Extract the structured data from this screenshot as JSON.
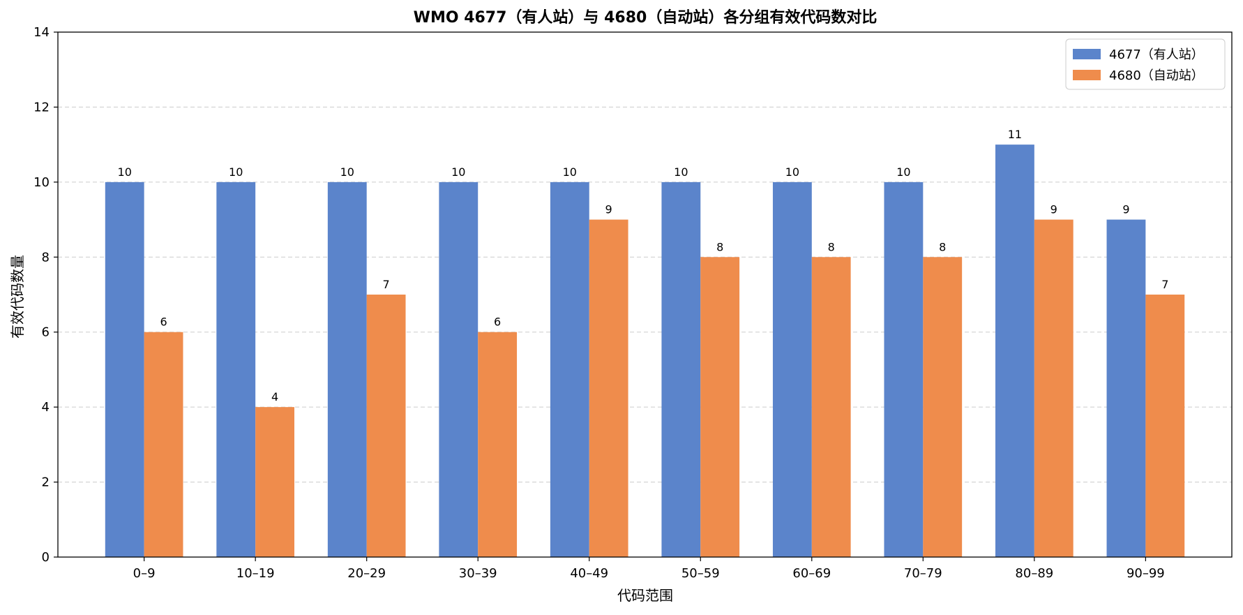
{
  "chart_data": {
    "type": "bar",
    "title": "WMO 4677（有人站）与 4680（自动站）各分组有效代码数对比",
    "xlabel": "代码范围",
    "ylabel": "有效代码数量",
    "categories": [
      "0–9",
      "10–19",
      "20–29",
      "30–39",
      "40–49",
      "50–59",
      "60–69",
      "70–79",
      "80–89",
      "90–99"
    ],
    "series": [
      {
        "name": "4677（有人站）",
        "color": "#5b84cb",
        "values": [
          10,
          10,
          10,
          10,
          10,
          10,
          10,
          10,
          11,
          9
        ]
      },
      {
        "name": "4680（自动站）",
        "color": "#ef8c4c",
        "values": [
          6,
          4,
          7,
          6,
          9,
          8,
          8,
          8,
          9,
          7
        ]
      }
    ],
    "ylim": [
      0,
      14
    ],
    "yticks": [
      0,
      2,
      4,
      6,
      8,
      10,
      12,
      14
    ],
    "grid": "y-dashed",
    "legend_position": "top-right"
  }
}
